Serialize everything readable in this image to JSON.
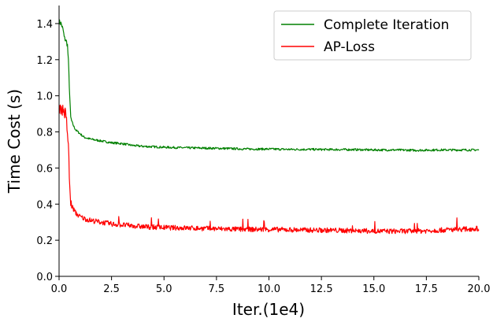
{
  "chart_data": {
    "type": "line",
    "title": "",
    "xlabel": "Iter.(1e4)",
    "ylabel": "Time Cost (s)",
    "xlim": [
      0,
      20
    ],
    "ylim": [
      0,
      1.5
    ],
    "grid": false,
    "legend_position": "top-right",
    "x_ticks": [
      "0.0",
      "2.5",
      "5.0",
      "7.5",
      "10.0",
      "12.5",
      "15.0",
      "17.5",
      "20.0"
    ],
    "y_ticks": [
      "0.0",
      "0.2",
      "0.4",
      "0.6",
      "0.8",
      "1.0",
      "1.2",
      "1.4"
    ],
    "series": [
      {
        "name": "Complete Iteration",
        "color": "#008000",
        "x": [
          0,
          0.1,
          0.2,
          0.25,
          0.3,
          0.35,
          0.4,
          0.45,
          0.5,
          0.55,
          0.6,
          0.7,
          0.8,
          1.0,
          1.2,
          1.5,
          2.0,
          2.5,
          3.0,
          3.5,
          4.0,
          5.0,
          6.0,
          7.0,
          8.0,
          9.0,
          10.0,
          11.0,
          12.0,
          13.0,
          14.0,
          15.0,
          16.0,
          17.0,
          18.0,
          19.0,
          20.0
        ],
        "values": [
          1.41,
          1.4,
          1.36,
          1.32,
          1.31,
          1.3,
          1.28,
          1.18,
          1.02,
          0.88,
          0.86,
          0.83,
          0.81,
          0.79,
          0.77,
          0.76,
          0.75,
          0.74,
          0.735,
          0.725,
          0.72,
          0.715,
          0.712,
          0.71,
          0.708,
          0.705,
          0.705,
          0.703,
          0.703,
          0.702,
          0.702,
          0.7,
          0.7,
          0.698,
          0.7,
          0.7,
          0.7
        ]
      },
      {
        "name": "AP-Loss",
        "color": "#ff0000",
        "x": [
          0,
          0.1,
          0.2,
          0.3,
          0.35,
          0.4,
          0.45,
          0.5,
          0.55,
          0.6,
          0.65,
          0.7,
          0.8,
          1.0,
          1.2,
          1.5,
          2.0,
          2.5,
          3.0,
          3.5,
          4.0,
          5.0,
          6.0,
          7.0,
          8.0,
          9.0,
          10.0,
          11.0,
          12.0,
          13.0,
          14.0,
          15.0,
          16.0,
          17.0,
          18.0,
          19.0,
          20.0
        ],
        "values": [
          0.94,
          0.93,
          0.92,
          0.9,
          0.86,
          0.8,
          0.7,
          0.52,
          0.4,
          0.39,
          0.38,
          0.37,
          0.35,
          0.33,
          0.32,
          0.31,
          0.3,
          0.29,
          0.285,
          0.28,
          0.275,
          0.27,
          0.268,
          0.265,
          0.262,
          0.26,
          0.26,
          0.258,
          0.256,
          0.255,
          0.253,
          0.25,
          0.25,
          0.25,
          0.255,
          0.26,
          0.265
        ]
      }
    ]
  }
}
